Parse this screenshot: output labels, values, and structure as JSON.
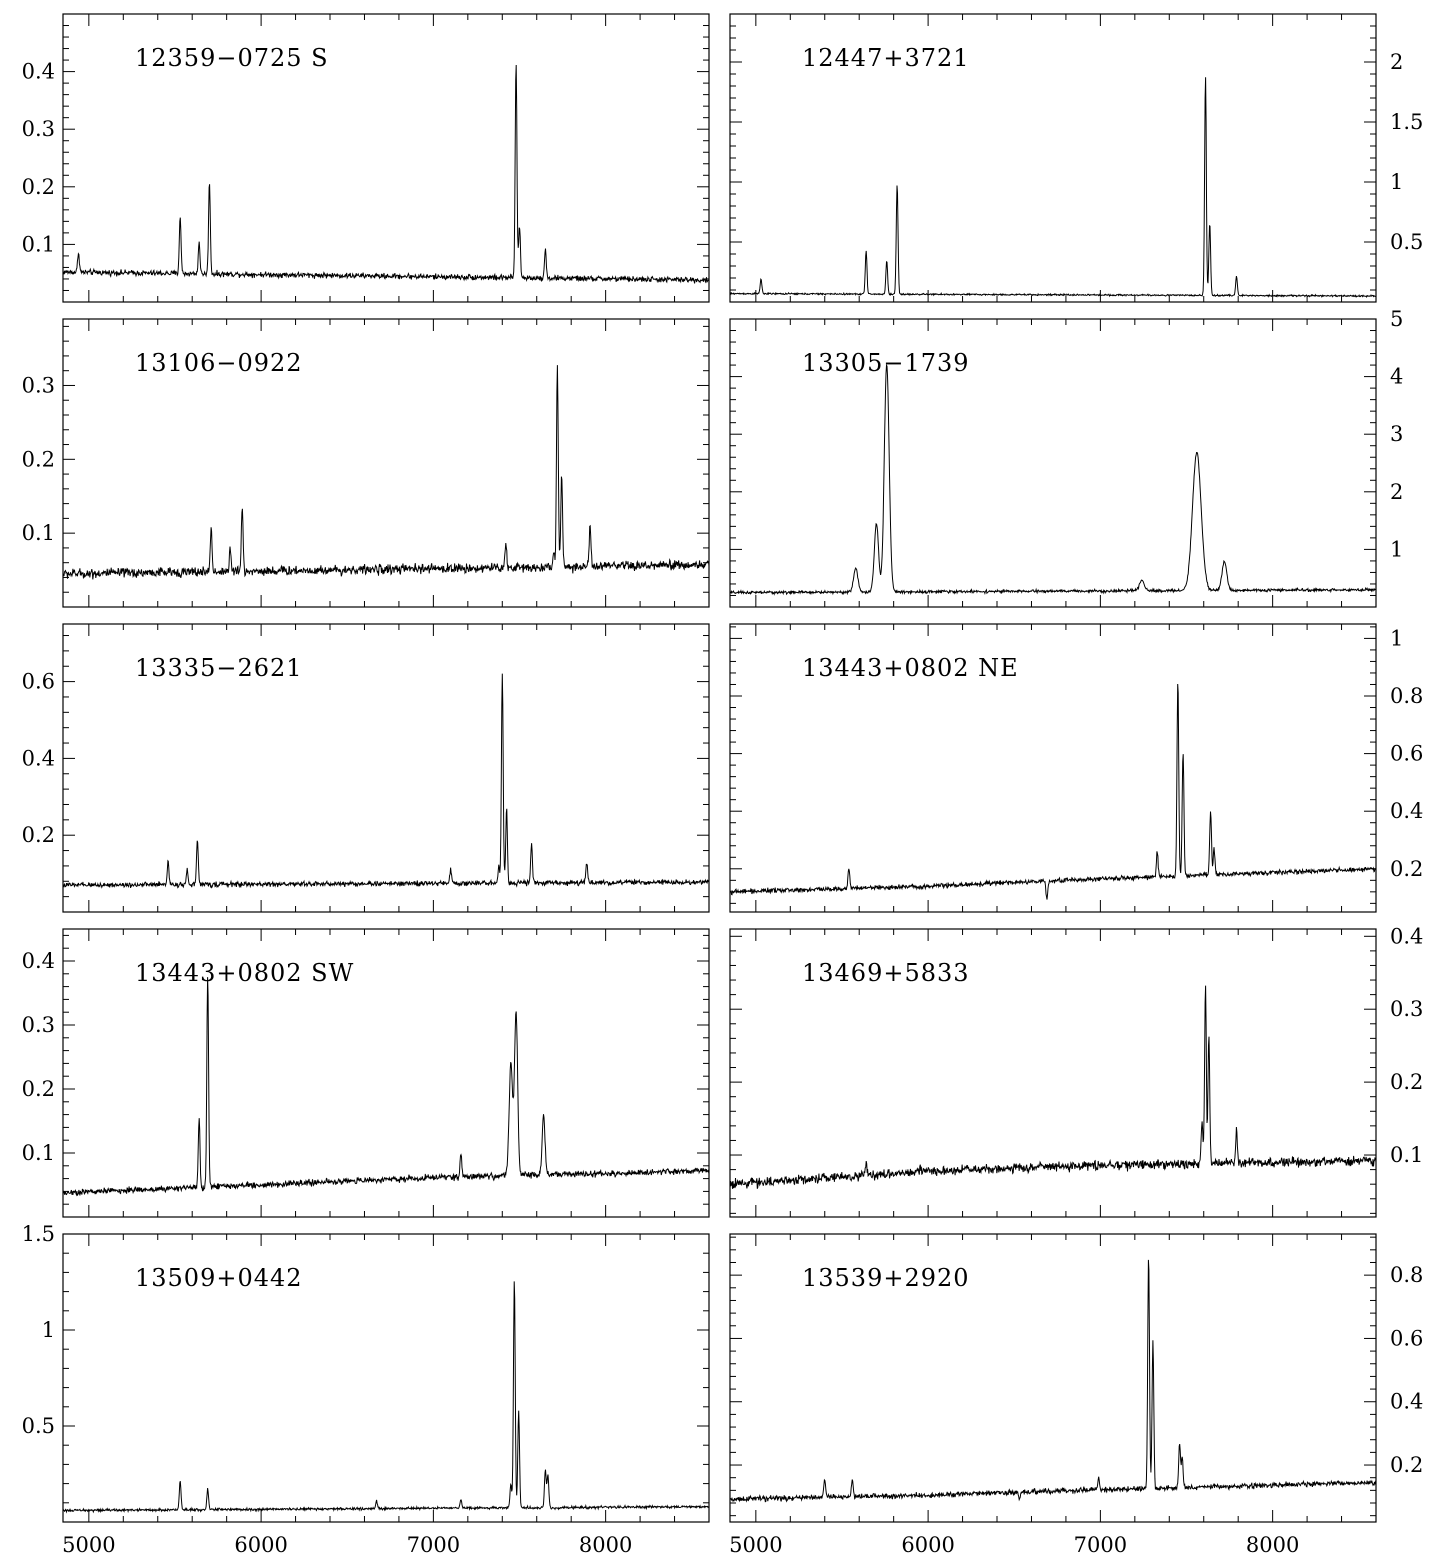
{
  "chart_data": [
    {
      "type": "line",
      "title": "",
      "label": "12359−0725 S",
      "xlim": [
        4850,
        8600
      ],
      "ylim": [
        0,
        0.5
      ],
      "x_ticks": [
        5000,
        6000,
        7000,
        8000
      ],
      "y_ticks": [
        0.1,
        0.2,
        0.3,
        0.4
      ],
      "y_tick_labels": [
        "0.1",
        "0.2",
        "0.3",
        "0.4"
      ],
      "axis_side": "left",
      "show_x_tick_labels": false,
      "continuum": [
        [
          4850,
          0.052
        ],
        [
          8600,
          0.038
        ]
      ],
      "noise": 0.003,
      "peaks": [
        {
          "x": 4940,
          "height": 0.035
        },
        {
          "x": 5530,
          "height": 0.1
        },
        {
          "x": 5640,
          "height": 0.055
        },
        {
          "x": 5700,
          "height": 0.16
        },
        {
          "x": 7480,
          "height": 0.375
        },
        {
          "x": 7500,
          "height": 0.09
        },
        {
          "x": 7650,
          "height": 0.05
        }
      ]
    },
    {
      "type": "line",
      "title": "",
      "label": "12447+3721",
      "xlim": [
        4850,
        8600
      ],
      "ylim": [
        0,
        2.4
      ],
      "x_ticks": [
        5000,
        6000,
        7000,
        8000
      ],
      "y_ticks": [
        0.5,
        1.0,
        1.5,
        2.0
      ],
      "y_tick_labels": [
        "0.5",
        "1",
        "1.5",
        "2"
      ],
      "axis_side": "right",
      "show_x_tick_labels": false,
      "continuum": [
        [
          4850,
          0.07
        ],
        [
          8600,
          0.05
        ]
      ],
      "noise": 0.004,
      "peaks": [
        {
          "x": 5030,
          "height": 0.12
        },
        {
          "x": 5640,
          "height": 0.36
        },
        {
          "x": 5760,
          "height": 0.28
        },
        {
          "x": 5820,
          "height": 0.92
        },
        {
          "x": 7610,
          "height": 1.83
        },
        {
          "x": 7635,
          "height": 0.6
        },
        {
          "x": 7790,
          "height": 0.16
        }
      ]
    },
    {
      "type": "line",
      "title": "",
      "label": "13106−0922",
      "xlim": [
        4850,
        8600
      ],
      "ylim": [
        0,
        0.39
      ],
      "x_ticks": [
        5000,
        6000,
        7000,
        8000
      ],
      "y_ticks": [
        0.1,
        0.2,
        0.3
      ],
      "y_tick_labels": [
        "0.1",
        "0.2",
        "0.3"
      ],
      "axis_side": "left",
      "show_x_tick_labels": false,
      "continuum": [
        [
          4850,
          0.045
        ],
        [
          8600,
          0.057
        ]
      ],
      "noise": 0.004,
      "peaks": [
        {
          "x": 5710,
          "height": 0.06
        },
        {
          "x": 5820,
          "height": 0.03
        },
        {
          "x": 5890,
          "height": 0.085
        },
        {
          "x": 7420,
          "height": 0.035
        },
        {
          "x": 7700,
          "height": 0.02
        },
        {
          "x": 7720,
          "height": 0.275
        },
        {
          "x": 7745,
          "height": 0.125
        },
        {
          "x": 7910,
          "height": 0.055
        }
      ]
    },
    {
      "type": "line",
      "title": "",
      "label": "13305−1739",
      "xlim": [
        4850,
        8600
      ],
      "ylim": [
        0,
        5.0
      ],
      "x_ticks": [
        5000,
        6000,
        7000,
        8000
      ],
      "y_ticks": [
        1,
        2,
        3,
        4,
        5
      ],
      "y_tick_labels": [
        "1",
        "2",
        "3",
        "4",
        "5"
      ],
      "axis_side": "right",
      "show_x_tick_labels": false,
      "continuum": [
        [
          4850,
          0.25
        ],
        [
          8600,
          0.3
        ]
      ],
      "noise": 0.015,
      "peaks": [
        {
          "x": 5580,
          "height": 0.42,
          "width": 12
        },
        {
          "x": 5700,
          "height": 1.2,
          "width": 12
        },
        {
          "x": 5760,
          "height": 3.95,
          "width": 14
        },
        {
          "x": 7240,
          "height": 0.18,
          "width": 14
        },
        {
          "x": 7560,
          "height": 2.4,
          "width": 25
        },
        {
          "x": 7720,
          "height": 0.5,
          "width": 14
        }
      ]
    },
    {
      "type": "line",
      "title": "",
      "label": "13335−2621",
      "xlim": [
        4850,
        8600
      ],
      "ylim": [
        0,
        0.75
      ],
      "x_ticks": [
        5000,
        6000,
        7000,
        8000
      ],
      "y_ticks": [
        0.2,
        0.4,
        0.6
      ],
      "y_tick_labels": [
        "0.2",
        "0.4",
        "0.6"
      ],
      "axis_side": "left",
      "show_x_tick_labels": false,
      "continuum": [
        [
          4850,
          0.07
        ],
        [
          8600,
          0.078
        ]
      ],
      "noise": 0.004,
      "peaks": [
        {
          "x": 5460,
          "height": 0.065
        },
        {
          "x": 5570,
          "height": 0.04
        },
        {
          "x": 5630,
          "height": 0.115
        },
        {
          "x": 7100,
          "height": 0.035
        },
        {
          "x": 7380,
          "height": 0.045
        },
        {
          "x": 7400,
          "height": 0.545
        },
        {
          "x": 7425,
          "height": 0.195
        },
        {
          "x": 7570,
          "height": 0.1
        },
        {
          "x": 7890,
          "height": 0.05
        }
      ]
    },
    {
      "type": "line",
      "title": "",
      "label": "13443+0802 NE",
      "xlim": [
        4850,
        8600
      ],
      "ylim": [
        0.05,
        1.05
      ],
      "x_ticks": [
        5000,
        6000,
        7000,
        8000
      ],
      "y_ticks": [
        0.2,
        0.4,
        0.6,
        0.8,
        1.0
      ],
      "y_tick_labels": [
        "0.2",
        "0.4",
        "0.6",
        "0.8",
        "1"
      ],
      "axis_side": "right",
      "show_x_tick_labels": false,
      "continuum": [
        [
          4850,
          0.12
        ],
        [
          6000,
          0.14
        ],
        [
          7000,
          0.165
        ],
        [
          8600,
          0.2
        ]
      ],
      "noise": 0.005,
      "peaks": [
        {
          "x": 5540,
          "height": 0.07
        },
        {
          "x": 6690,
          "height": -0.06
        },
        {
          "x": 7330,
          "height": 0.09
        },
        {
          "x": 7450,
          "height": 0.68
        },
        {
          "x": 7480,
          "height": 0.43
        },
        {
          "x": 7640,
          "height": 0.22
        },
        {
          "x": 7660,
          "height": 0.09
        }
      ]
    },
    {
      "type": "line",
      "title": "",
      "label": "13443+0802 SW",
      "xlim": [
        4850,
        8600
      ],
      "ylim": [
        0,
        0.45
      ],
      "x_ticks": [
        5000,
        6000,
        7000,
        8000
      ],
      "y_ticks": [
        0.1,
        0.2,
        0.3,
        0.4
      ],
      "y_tick_labels": [
        "0.1",
        "0.2",
        "0.3",
        "0.4"
      ],
      "axis_side": "left",
      "show_x_tick_labels": false,
      "continuum": [
        [
          4850,
          0.038
        ],
        [
          6000,
          0.05
        ],
        [
          7000,
          0.062
        ],
        [
          8600,
          0.072
        ]
      ],
      "noise": 0.003,
      "peaks": [
        {
          "x": 5640,
          "height": 0.105
        },
        {
          "x": 5690,
          "height": 0.33
        },
        {
          "x": 7160,
          "height": 0.035
        },
        {
          "x": 7450,
          "height": 0.175,
          "width": 10
        },
        {
          "x": 7480,
          "height": 0.255,
          "width": 9
        },
        {
          "x": 7640,
          "height": 0.095,
          "width": 8
        }
      ]
    },
    {
      "type": "line",
      "title": "",
      "label": "13469+5833",
      "xlim": [
        4850,
        8600
      ],
      "ylim": [
        0.015,
        0.41
      ],
      "x_ticks": [
        5000,
        6000,
        7000,
        8000
      ],
      "y_ticks": [
        0.1,
        0.2,
        0.3,
        0.4
      ],
      "y_tick_labels": [
        "0.1",
        "0.2",
        "0.3",
        "0.4"
      ],
      "axis_side": "right",
      "show_x_tick_labels": false,
      "continuum": [
        [
          4850,
          0.06
        ],
        [
          6000,
          0.078
        ],
        [
          7000,
          0.086
        ],
        [
          8600,
          0.092
        ]
      ],
      "noise": 0.004,
      "peaks": [
        {
          "x": 5640,
          "height": 0.015
        },
        {
          "x": 7590,
          "height": 0.06
        },
        {
          "x": 7610,
          "height": 0.245
        },
        {
          "x": 7630,
          "height": 0.175
        },
        {
          "x": 7790,
          "height": 0.045
        }
      ]
    },
    {
      "type": "line",
      "title": "",
      "label": "13509+0442",
      "xlim": [
        4850,
        8600
      ],
      "ylim": [
        0,
        1.5
      ],
      "x_ticks": [
        5000,
        6000,
        7000,
        8000
      ],
      "y_ticks": [
        0.5,
        1.0,
        1.5
      ],
      "y_tick_labels": [
        "0.5",
        "1",
        "1.5"
      ],
      "axis_side": "left",
      "show_x_tick_labels": true,
      "continuum": [
        [
          4850,
          0.06
        ],
        [
          8600,
          0.08
        ]
      ],
      "noise": 0.004,
      "peaks": [
        {
          "x": 5530,
          "height": 0.15
        },
        {
          "x": 5690,
          "height": 0.11
        },
        {
          "x": 6670,
          "height": 0.04
        },
        {
          "x": 7160,
          "height": 0.045
        },
        {
          "x": 7450,
          "height": 0.12
        },
        {
          "x": 7470,
          "height": 1.19
        },
        {
          "x": 7495,
          "height": 0.5
        },
        {
          "x": 7650,
          "height": 0.2
        },
        {
          "x": 7665,
          "height": 0.17
        }
      ]
    },
    {
      "type": "line",
      "title": "",
      "label": "13539+2920",
      "xlim": [
        4850,
        8600
      ],
      "ylim": [
        0.02,
        0.93
      ],
      "x_ticks": [
        5000,
        6000,
        7000,
        8000
      ],
      "y_ticks": [
        0.2,
        0.4,
        0.6,
        0.8
      ],
      "y_tick_labels": [
        "0.2",
        "0.4",
        "0.6",
        "0.8"
      ],
      "axis_side": "right",
      "show_x_tick_labels": true,
      "continuum": [
        [
          4850,
          0.092
        ],
        [
          6000,
          0.105
        ],
        [
          7000,
          0.122
        ],
        [
          8600,
          0.145
        ]
      ],
      "noise": 0.005,
      "peaks": [
        {
          "x": 5400,
          "height": 0.055
        },
        {
          "x": 5560,
          "height": 0.055
        },
        {
          "x": 6530,
          "height": -0.025
        },
        {
          "x": 6990,
          "height": 0.04
        },
        {
          "x": 7280,
          "height": 0.74
        },
        {
          "x": 7305,
          "height": 0.46
        },
        {
          "x": 7460,
          "height": 0.14
        },
        {
          "x": 7475,
          "height": 0.1
        }
      ]
    }
  ]
}
